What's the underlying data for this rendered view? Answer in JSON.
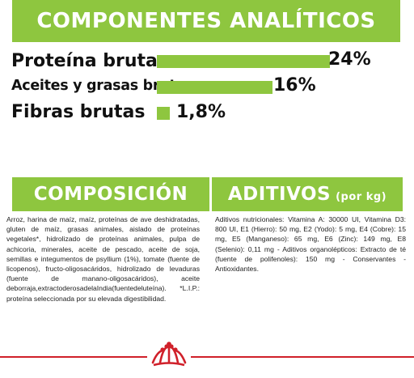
{
  "header": {
    "title": "COMPONENTES ANALÍTICOS"
  },
  "analytics": [
    {
      "label": "Proteína bruta",
      "percent_text": "24%",
      "value": 24
    },
    {
      "label": "Aceites y grasas brutos",
      "percent_text": "16%",
      "value": 16
    },
    {
      "label": "Fibras brutas",
      "percent_text": "1,8%",
      "value": 1.8
    }
  ],
  "composition": {
    "title": "COMPOSICIÓN",
    "text": "Arroz, harina de maíz, maíz, proteínas de ave deshidratadas, gluten de maíz, grasas animales, aislado de proteínas vegetales*, hidrolizado de proteínas animales, pulpa de achicoria, minerales, aceite de pescado, aceite de soja, semillas e integumentos de psyllium (1%), tomate (fuente de licopenos), fructo-oligosacáridos, hidrolizado de levaduras (fuente de manano-oligosacáridos), aceite deborraja,extractoderosadelaIndia(fuentedeluteína). *L.I.P.: proteína seleccionada por su elevada digestibilidad."
  },
  "additives": {
    "title": "ADITIVOS",
    "title_suffix": "(por kg)",
    "text": "Aditivos nutricionales: Vitamina A: 30000 UI, Vitamina D3: 800 UI, E1 (Hierro): 50 mg, E2 (Yodo): 5 mg, E4 (Cobre): 15 mg, E5 (Manganeso): 65 mg, E6 (Zinc): 149 mg, E8 (Selenio): 0,11 mg - Aditivos organolépticos: Extracto de té (fuente de polifenoles): 150 mg - Conservantes - Antioxidantes."
  },
  "colors": {
    "accent": "#8ec63f",
    "brand_red": "#d0202a"
  },
  "footer": {
    "logo_icon": "royal-canin-crown-icon"
  }
}
